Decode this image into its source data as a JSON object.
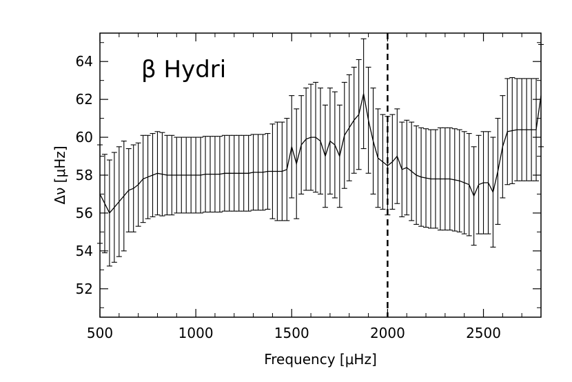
{
  "chart_data": {
    "type": "line",
    "title": "",
    "annotation": "β Hydri",
    "xlabel": "Frequency [μHz]",
    "ylabel": "Δν [μHz]",
    "xlim": [
      500,
      2800
    ],
    "ylim": [
      50.5,
      65.5
    ],
    "xticks": [
      500,
      1000,
      1500,
      2000,
      2500
    ],
    "yticks": [
      52,
      54,
      56,
      58,
      60,
      62,
      64
    ],
    "xtick_labels": [
      "500",
      "1000",
      "1500",
      "2000",
      "2500"
    ],
    "ytick_labels": [
      "52",
      "54",
      "56",
      "58",
      "60",
      "62",
      "64"
    ],
    "vline_x": 2000,
    "grid": false,
    "series": [
      {
        "x": [
          500,
          525,
          550,
          575,
          600,
          625,
          650,
          675,
          700,
          725,
          750,
          775,
          800,
          825,
          850,
          875,
          900,
          925,
          950,
          975,
          1000,
          1025,
          1050,
          1075,
          1100,
          1125,
          1150,
          1175,
          1200,
          1225,
          1250,
          1275,
          1300,
          1325,
          1350,
          1375,
          1400,
          1425,
          1450,
          1475,
          1500,
          1525,
          1550,
          1575,
          1600,
          1625,
          1650,
          1675,
          1700,
          1725,
          1750,
          1775,
          1800,
          1825,
          1850,
          1875,
          1900,
          1925,
          1950,
          1975,
          2000,
          2025,
          2050,
          2075,
          2100,
          2125,
          2150,
          2175,
          2200,
          2225,
          2250,
          2275,
          2300,
          2325,
          2350,
          2375,
          2400,
          2425,
          2450,
          2475,
          2500,
          2525,
          2550,
          2575,
          2600,
          2625,
          2650,
          2675,
          2700,
          2725,
          2750,
          2775,
          2800
        ],
        "y": [
          57.0,
          56.5,
          56.0,
          56.3,
          56.6,
          56.9,
          57.2,
          57.3,
          57.5,
          57.8,
          57.9,
          58.0,
          58.1,
          58.05,
          58.0,
          58.0,
          58.0,
          58.0,
          58.0,
          58.0,
          58.0,
          58.0,
          58.05,
          58.05,
          58.05,
          58.05,
          58.1,
          58.1,
          58.1,
          58.1,
          58.1,
          58.1,
          58.15,
          58.15,
          58.15,
          58.2,
          58.2,
          58.2,
          58.2,
          58.3,
          59.5,
          58.6,
          59.6,
          59.9,
          60.0,
          60.0,
          59.8,
          59.0,
          59.8,
          59.6,
          59.0,
          60.1,
          60.5,
          60.9,
          61.2,
          62.3,
          60.9,
          59.8,
          58.9,
          58.7,
          58.5,
          58.7,
          59.0,
          58.3,
          58.4,
          58.2,
          58.0,
          57.9,
          57.85,
          57.8,
          57.8,
          57.8,
          57.8,
          57.8,
          57.75,
          57.7,
          57.6,
          57.5,
          56.9,
          57.5,
          57.6,
          57.6,
          57.1,
          58.2,
          59.5,
          60.3,
          60.35,
          60.4,
          60.4,
          60.4,
          60.4,
          60.4,
          62.2
        ],
        "err": [
          2.6,
          2.6,
          2.8,
          2.9,
          2.9,
          2.9,
          2.2,
          2.3,
          2.2,
          2.3,
          2.2,
          2.2,
          2.2,
          2.2,
          2.1,
          2.1,
          2.0,
          2.0,
          2.0,
          2.0,
          2.0,
          2.0,
          2.0,
          2.0,
          2.0,
          2.0,
          2.0,
          2.0,
          2.0,
          2.0,
          2.0,
          2.0,
          2.0,
          2.0,
          2.0,
          2.0,
          2.5,
          2.6,
          2.6,
          2.7,
          2.7,
          2.9,
          2.6,
          2.7,
          2.8,
          2.9,
          2.8,
          2.7,
          2.8,
          2.8,
          2.7,
          2.8,
          2.8,
          2.8,
          2.9,
          2.9,
          2.8,
          2.8,
          2.6,
          2.5,
          2.6,
          2.5,
          2.5,
          2.5,
          2.5,
          2.6,
          2.6,
          2.6,
          2.6,
          2.6,
          2.6,
          2.7,
          2.7,
          2.7,
          2.7,
          2.7,
          2.7,
          2.7,
          2.6,
          2.6,
          2.7,
          2.7,
          2.9,
          2.8,
          2.7,
          2.8,
          2.8,
          2.7,
          2.7,
          2.7,
          2.7,
          2.7,
          2.7
        ]
      }
    ]
  }
}
